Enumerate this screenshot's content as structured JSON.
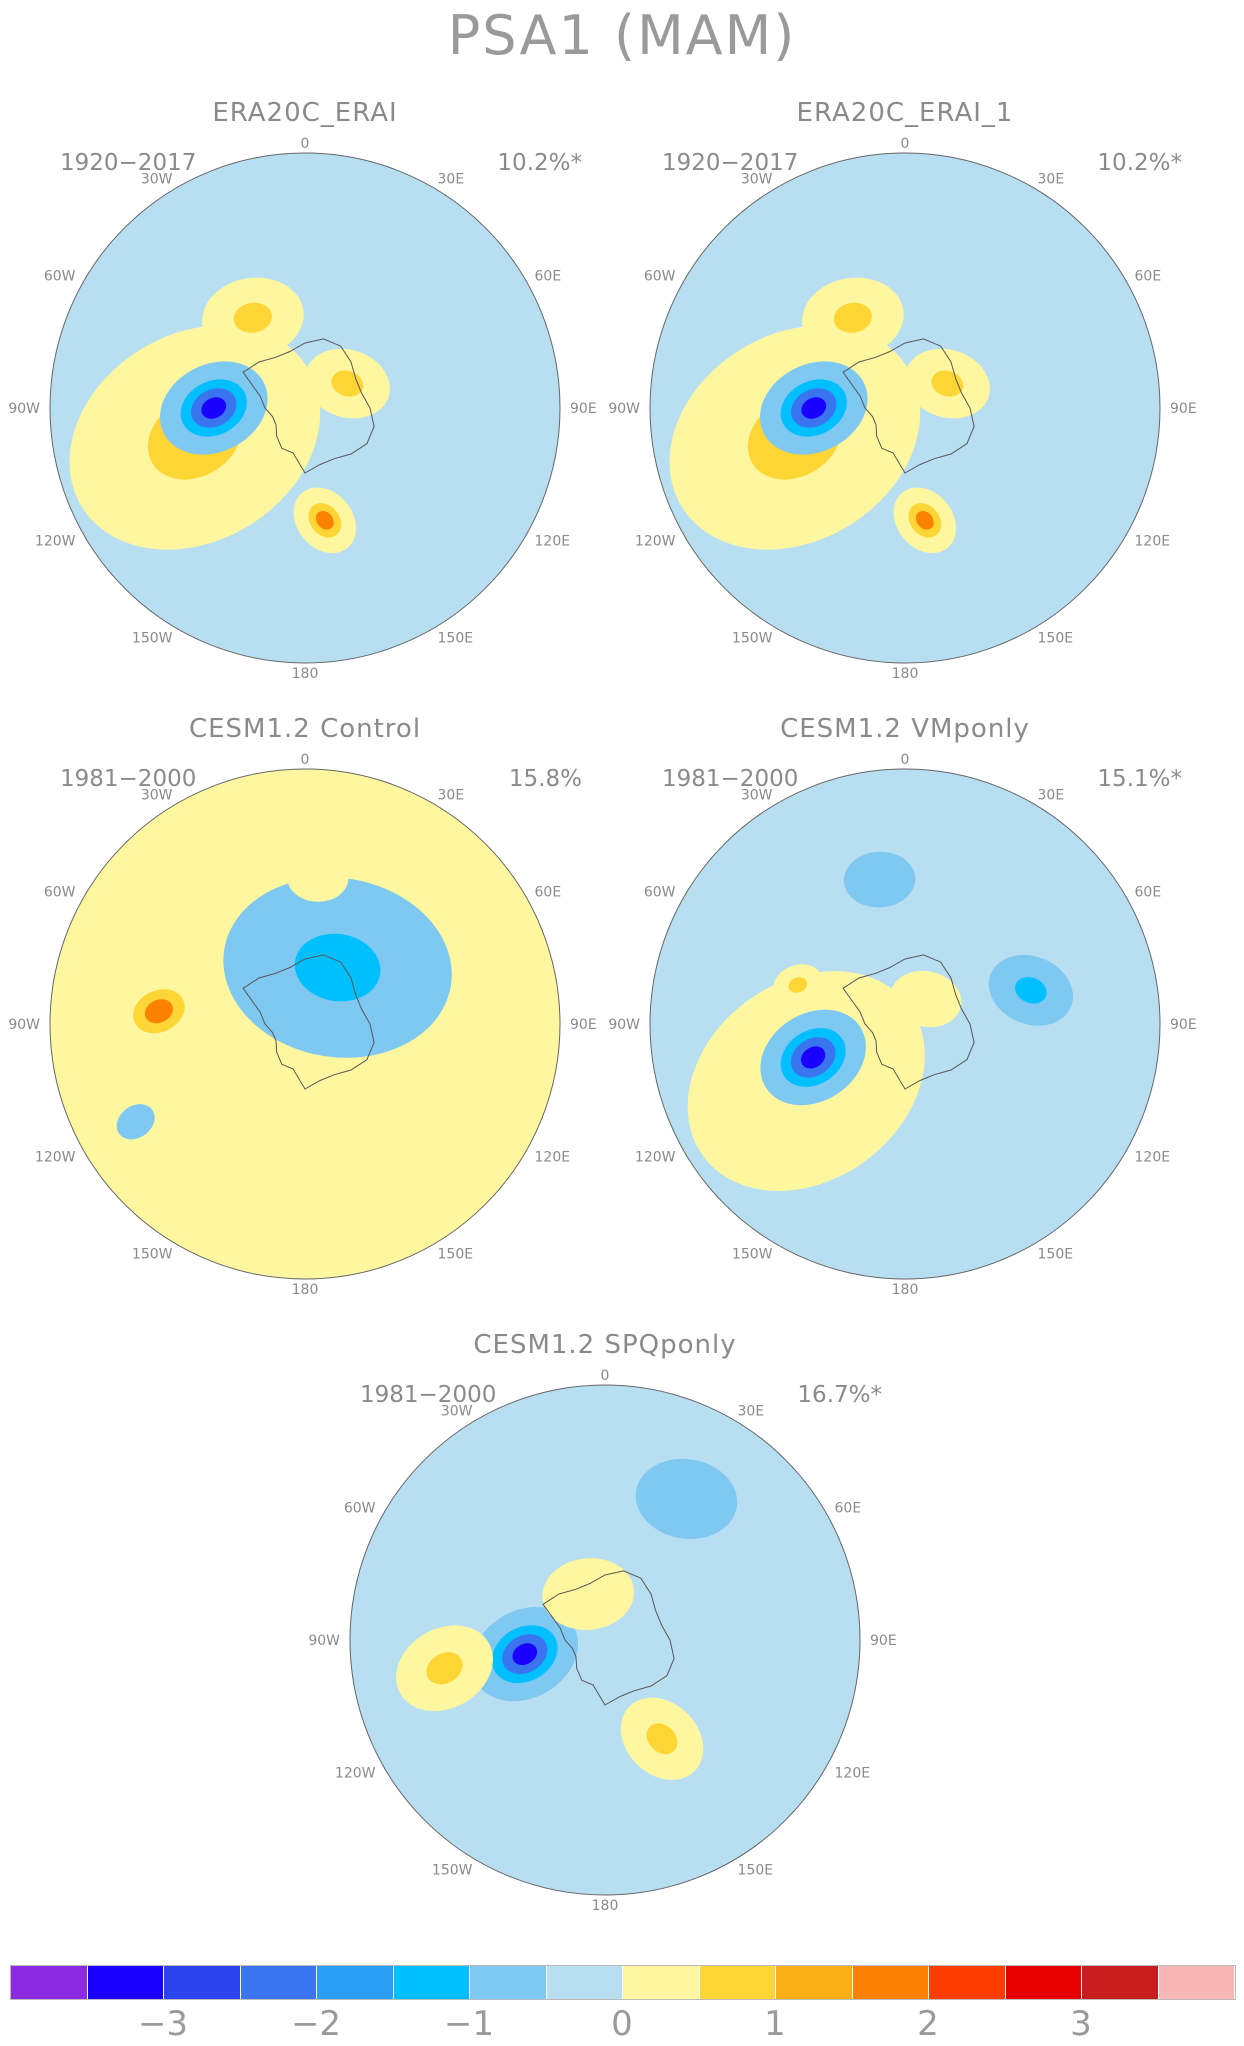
{
  "title": "PSA1 (MAM)",
  "panels": [
    {
      "title": "ERA20C_ERAI",
      "period": "1920−2017",
      "variance": "10.2%*",
      "pattern": [
        {
          "lon": 0,
          "lat": -30,
          "r": 0.0,
          "level": 0
        },
        {
          "lon": -105,
          "lat": -55,
          "r": 0.52,
          "level": 2
        },
        {
          "lon": -90,
          "lat": -62,
          "r": 0.22,
          "level": -4
        },
        {
          "lon": -30,
          "lat": -58,
          "r": 0.2,
          "level": 2
        },
        {
          "lon": 60,
          "lat": -75,
          "r": 0.17,
          "level": 2
        },
        {
          "lon": 170,
          "lat": -55,
          "r": 0.14,
          "level": 3
        }
      ]
    },
    {
      "title": "ERA20C_ERAI_1",
      "period": "1920−2017",
      "variance": "10.2%*",
      "pattern": [
        {
          "lon": -105,
          "lat": -55,
          "r": 0.52,
          "level": 2
        },
        {
          "lon": -90,
          "lat": -62,
          "r": 0.22,
          "level": -4
        },
        {
          "lon": -30,
          "lat": -58,
          "r": 0.2,
          "level": 2
        },
        {
          "lon": 60,
          "lat": -75,
          "r": 0.17,
          "level": 2
        },
        {
          "lon": 170,
          "lat": -55,
          "r": 0.14,
          "level": 3
        }
      ]
    },
    {
      "title": "CESM1.2 Control",
      "period": "1981−2000",
      "variance": "15.8%",
      "pattern": [
        {
          "lon": 30,
          "lat": -70,
          "r": 0.45,
          "level": -2
        },
        {
          "lon": -85,
          "lat": -45,
          "r": 0.2,
          "level": 3
        },
        {
          "lon": 5,
          "lat": -45,
          "r": 0.12,
          "level": 1
        },
        {
          "lon": -120,
          "lat": -30,
          "r": 0.08,
          "level": -1
        }
      ]
    },
    {
      "title": "CESM1.2 VMponly",
      "period": "1981−2000",
      "variance": "15.1%*",
      "pattern": [
        {
          "lon": -120,
          "lat": -55,
          "r": 0.5,
          "level": 1
        },
        {
          "lon": -110,
          "lat": -60,
          "r": 0.22,
          "level": -4
        },
        {
          "lon": 75,
          "lat": -50,
          "r": 0.17,
          "level": -2
        },
        {
          "lon": -10,
          "lat": -45,
          "r": 0.14,
          "level": -1
        },
        {
          "lon": -70,
          "lat": -55,
          "r": 0.1,
          "level": 2
        },
        {
          "lon": 40,
          "lat": -80,
          "r": 0.14,
          "level": 1
        }
      ]
    },
    {
      "title": "CESM1.2 SPQponly",
      "period": "1981−2000",
      "variance": "16.7%*",
      "pattern": [
        {
          "lon": -100,
          "lat": -65,
          "r": 0.22,
          "level": -4
        },
        {
          "lon": -100,
          "lat": -40,
          "r": 0.2,
          "level": 2
        },
        {
          "lon": 150,
          "lat": -55,
          "r": 0.18,
          "level": 2
        },
        {
          "lon": 30,
          "lat": -40,
          "r": 0.2,
          "level": -1
        },
        {
          "lon": -20,
          "lat": -75,
          "r": 0.18,
          "level": 1
        }
      ]
    }
  ],
  "lon_labels": [
    "0",
    "30E",
    "60E",
    "90E",
    "120E",
    "150E",
    "180",
    "150W",
    "120W",
    "90W",
    "60W",
    "30W"
  ],
  "colorbar": {
    "colors": [
      "#8a2be2",
      "#1a00ff",
      "#2b44f0",
      "#3a74ee",
      "#2a9df5",
      "#00bfff",
      "#7ec8f2",
      "#b8def2",
      "#fff7a0",
      "#fdd535",
      "#fcae17",
      "#fb8100",
      "#fb3d00",
      "#e60000",
      "#c81e1e",
      "#f8b7b7"
    ],
    "labels": [
      "−3",
      "−2",
      "−1",
      "0",
      "1",
      "2",
      "3"
    ]
  }
}
